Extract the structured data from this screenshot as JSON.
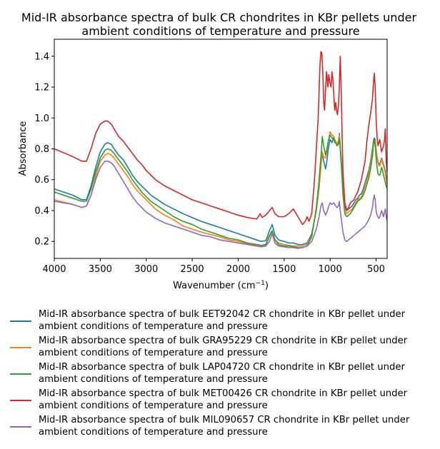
{
  "chart_data": {
    "type": "line",
    "title": "Mid-IR absorbance spectra of bulk CR chondrites in KBr pellets under\nambient conditions of temperature and pressure",
    "xlabel": "Wavenumber (cm",
    "xlabel_sup": "−1",
    "xlabel_close": ")",
    "ylabel": "Absorbance",
    "xlim": [
      4000,
      380
    ],
    "ylim": [
      0.09,
      1.51
    ],
    "xticks": [
      4000,
      3500,
      3000,
      2500,
      2000,
      1500,
      1000,
      500
    ],
    "xtick_labels": [
      "4000",
      "3500",
      "3000",
      "2500",
      "2000",
      "1500",
      "1000",
      "500"
    ],
    "yticks": [
      0.2,
      0.4,
      0.6,
      0.8,
      1.0,
      1.2,
      1.4
    ],
    "ytick_labels": [
      "0.2",
      "0.4",
      "0.6",
      "0.8",
      "1.0",
      "1.2",
      "1.4"
    ],
    "grid": false,
    "legend_position": "below",
    "series": [
      {
        "name": "Mid-IR absorbance spectra of bulk EET92042 CR chondrite in KBr pellet under\nambient conditions of temperature and pressure",
        "color": "#1f77b4",
        "x": [
          4000,
          3800,
          3700,
          3650,
          3600,
          3550,
          3500,
          3450,
          3420,
          3380,
          3350,
          3300,
          3250,
          3200,
          3150,
          3100,
          3050,
          3000,
          2950,
          2900,
          2800,
          2700,
          2600,
          2500,
          2400,
          2300,
          2200,
          2100,
          2000,
          1900,
          1800,
          1750,
          1700,
          1660,
          1630,
          1600,
          1560,
          1500,
          1450,
          1400,
          1350,
          1300,
          1250,
          1200,
          1150,
          1120,
          1100,
          1085,
          1070,
          1050,
          1035,
          1020,
          1000,
          980,
          960,
          950,
          940,
          925,
          910,
          900,
          890,
          875,
          860,
          840,
          820,
          800,
          780,
          760,
          740,
          720,
          700,
          680,
          660,
          640,
          620,
          600,
          580,
          560,
          540,
          530,
          520,
          510,
          500,
          490,
          480,
          470,
          460,
          450,
          440,
          430,
          420,
          410,
          400,
          390,
          380
        ],
        "y": [
          0.54,
          0.5,
          0.47,
          0.47,
          0.56,
          0.68,
          0.78,
          0.83,
          0.84,
          0.83,
          0.8,
          0.76,
          0.73,
          0.68,
          0.63,
          0.59,
          0.56,
          0.53,
          0.5,
          0.48,
          0.44,
          0.41,
          0.38,
          0.355,
          0.33,
          0.31,
          0.29,
          0.27,
          0.25,
          0.23,
          0.21,
          0.2,
          0.205,
          0.27,
          0.31,
          0.24,
          0.21,
          0.2,
          0.19,
          0.19,
          0.18,
          0.18,
          0.19,
          0.25,
          0.4,
          0.55,
          0.7,
          0.77,
          0.72,
          0.67,
          0.72,
          0.8,
          0.86,
          0.84,
          0.88,
          0.86,
          0.84,
          0.82,
          0.84,
          0.9,
          0.82,
          0.7,
          0.55,
          0.42,
          0.4,
          0.41,
          0.42,
          0.43,
          0.45,
          0.47,
          0.48,
          0.5,
          0.51,
          0.54,
          0.58,
          0.62,
          0.66,
          0.72,
          0.8,
          0.85,
          0.87,
          0.86,
          0.8,
          0.75,
          0.72,
          0.7,
          0.7,
          0.72,
          0.74,
          0.72,
          0.7,
          0.68,
          0.66,
          0.62,
          0.6
        ]
      },
      {
        "name": "Mid-IR absorbance spectra of bulk GRA95229 CR chondrite in KBr pellet under\nambient conditions of temperature and pressure",
        "color": "#ff7f0e",
        "x": [
          4000,
          3800,
          3700,
          3650,
          3600,
          3550,
          3500,
          3450,
          3420,
          3380,
          3350,
          3300,
          3250,
          3200,
          3150,
          3100,
          3050,
          3000,
          2950,
          2900,
          2800,
          2700,
          2600,
          2500,
          2400,
          2300,
          2200,
          2100,
          2000,
          1900,
          1800,
          1750,
          1700,
          1660,
          1630,
          1600,
          1560,
          1500,
          1450,
          1400,
          1350,
          1300,
          1250,
          1200,
          1150,
          1120,
          1100,
          1085,
          1070,
          1050,
          1035,
          1020,
          1000,
          980,
          960,
          950,
          940,
          925,
          910,
          900,
          890,
          875,
          860,
          840,
          820,
          800,
          780,
          760,
          740,
          720,
          700,
          680,
          660,
          640,
          620,
          600,
          580,
          560,
          540,
          530,
          520,
          510,
          500,
          490,
          480,
          470,
          460,
          450,
          440,
          430,
          420,
          410,
          400,
          390,
          380
        ],
        "y": [
          0.47,
          0.44,
          0.42,
          0.43,
          0.5,
          0.62,
          0.72,
          0.76,
          0.77,
          0.76,
          0.74,
          0.7,
          0.66,
          0.62,
          0.57,
          0.53,
          0.5,
          0.47,
          0.44,
          0.41,
          0.37,
          0.34,
          0.3,
          0.28,
          0.26,
          0.245,
          0.23,
          0.21,
          0.2,
          0.185,
          0.175,
          0.17,
          0.175,
          0.23,
          0.26,
          0.21,
          0.19,
          0.18,
          0.175,
          0.17,
          0.17,
          0.17,
          0.18,
          0.24,
          0.4,
          0.55,
          0.68,
          0.78,
          0.75,
          0.74,
          0.78,
          0.85,
          0.91,
          0.89,
          0.88,
          0.86,
          0.85,
          0.83,
          0.85,
          0.89,
          0.82,
          0.68,
          0.55,
          0.4,
          0.38,
          0.39,
          0.4,
          0.41,
          0.43,
          0.45,
          0.47,
          0.48,
          0.49,
          0.52,
          0.56,
          0.6,
          0.64,
          0.7,
          0.78,
          0.84,
          0.86,
          0.85,
          0.79,
          0.74,
          0.71,
          0.69,
          0.69,
          0.71,
          0.73,
          0.71,
          0.69,
          0.67,
          0.64,
          0.6,
          0.57
        ]
      },
      {
        "name": "Mid-IR absorbance spectra of bulk LAP04720 CR chondrite in KBr pellet under\nambient conditions of temperature and pressure",
        "color": "#2ca02c",
        "x": [
          4000,
          3800,
          3700,
          3650,
          3600,
          3550,
          3500,
          3450,
          3420,
          3380,
          3350,
          3300,
          3250,
          3200,
          3150,
          3100,
          3050,
          3000,
          2950,
          2900,
          2800,
          2700,
          2600,
          2500,
          2400,
          2300,
          2200,
          2100,
          2000,
          1900,
          1800,
          1750,
          1700,
          1660,
          1630,
          1600,
          1560,
          1500,
          1450,
          1400,
          1350,
          1300,
          1250,
          1200,
          1150,
          1120,
          1100,
          1085,
          1070,
          1050,
          1035,
          1020,
          1000,
          980,
          960,
          950,
          940,
          925,
          910,
          900,
          890,
          875,
          860,
          840,
          820,
          800,
          780,
          760,
          740,
          720,
          700,
          680,
          660,
          640,
          620,
          600,
          580,
          560,
          540,
          530,
          520,
          510,
          500,
          490,
          480,
          470,
          460,
          450,
          440,
          430,
          420,
          410,
          400,
          390,
          380
        ],
        "y": [
          0.52,
          0.48,
          0.46,
          0.46,
          0.54,
          0.65,
          0.74,
          0.79,
          0.8,
          0.79,
          0.77,
          0.73,
          0.69,
          0.65,
          0.6,
          0.56,
          0.52,
          0.49,
          0.46,
          0.44,
          0.4,
          0.36,
          0.33,
          0.31,
          0.28,
          0.26,
          0.24,
          0.22,
          0.21,
          0.19,
          0.18,
          0.175,
          0.18,
          0.24,
          0.27,
          0.21,
          0.18,
          0.17,
          0.17,
          0.165,
          0.16,
          0.16,
          0.17,
          0.23,
          0.42,
          0.6,
          0.75,
          0.88,
          0.82,
          0.76,
          0.8,
          0.85,
          0.89,
          0.87,
          0.86,
          0.84,
          0.84,
          0.82,
          0.83,
          0.87,
          0.8,
          0.66,
          0.5,
          0.38,
          0.36,
          0.37,
          0.38,
          0.4,
          0.42,
          0.44,
          0.46,
          0.47,
          0.48,
          0.5,
          0.53,
          0.57,
          0.61,
          0.67,
          0.75,
          0.82,
          0.86,
          0.82,
          0.74,
          0.68,
          0.64,
          0.63,
          0.63,
          0.65,
          0.68,
          0.66,
          0.63,
          0.61,
          0.58,
          0.56,
          0.54
        ]
      },
      {
        "name": "Mid-IR absorbance spectra of bulk MET00426 CR chondrite in KBr pellet under\nambient conditions of temperature and pressure",
        "color": "#d62728",
        "x": [
          4000,
          3800,
          3700,
          3650,
          3600,
          3550,
          3500,
          3450,
          3420,
          3380,
          3350,
          3300,
          3250,
          3200,
          3150,
          3100,
          3050,
          3000,
          2950,
          2900,
          2800,
          2700,
          2600,
          2500,
          2400,
          2300,
          2200,
          2100,
          2000,
          1900,
          1800,
          1780,
          1760,
          1740,
          1700,
          1660,
          1630,
          1600,
          1560,
          1500,
          1450,
          1400,
          1350,
          1300,
          1270,
          1250,
          1230,
          1200,
          1170,
          1150,
          1130,
          1110,
          1100,
          1090,
          1080,
          1070,
          1060,
          1050,
          1040,
          1035,
          1025,
          1015,
          1000,
          990,
          980,
          970,
          960,
          950,
          940,
          930,
          920,
          910,
          900,
          890,
          880,
          870,
          860,
          840,
          820,
          800,
          780,
          760,
          740,
          720,
          700,
          680,
          660,
          640,
          620,
          600,
          580,
          560,
          540,
          530,
          520,
          510,
          500,
          490,
          480,
          470,
          460,
          450,
          440,
          430,
          420,
          410,
          400,
          390,
          380
        ],
        "y": [
          0.8,
          0.75,
          0.72,
          0.72,
          0.8,
          0.9,
          0.96,
          0.98,
          0.98,
          0.96,
          0.93,
          0.88,
          0.85,
          0.81,
          0.77,
          0.73,
          0.7,
          0.66,
          0.63,
          0.6,
          0.56,
          0.53,
          0.5,
          0.47,
          0.45,
          0.43,
          0.41,
          0.39,
          0.37,
          0.355,
          0.345,
          0.36,
          0.38,
          0.355,
          0.37,
          0.4,
          0.42,
          0.38,
          0.36,
          0.36,
          0.38,
          0.41,
          0.36,
          0.31,
          0.33,
          0.36,
          0.33,
          0.38,
          0.6,
          0.8,
          1.0,
          1.35,
          1.43,
          1.42,
          1.3,
          1.1,
          1.05,
          1.18,
          1.3,
          1.28,
          1.2,
          1.28,
          1.22,
          1.2,
          1.3,
          1.25,
          1.15,
          1.05,
          1.1,
          1.05,
          1.02,
          1.08,
          1.2,
          1.4,
          1.2,
          0.9,
          0.65,
          0.45,
          0.4,
          0.42,
          0.45,
          0.46,
          0.47,
          0.5,
          0.52,
          0.56,
          0.6,
          0.66,
          0.72,
          0.85,
          0.95,
          1.03,
          1.12,
          1.22,
          1.29,
          1.2,
          1.0,
          0.88,
          0.82,
          0.84,
          0.86,
          0.82,
          0.78,
          0.8,
          0.82,
          0.85,
          0.93,
          0.72,
          0.65
        ]
      },
      {
        "name": "Mid-IR absorbance spectra of bulk MIL090657 CR chondrite in KBr pellet under\nambient conditions of temperature and pressure",
        "color": "#9467bd",
        "x": [
          4000,
          3800,
          3700,
          3650,
          3600,
          3550,
          3500,
          3450,
          3420,
          3380,
          3350,
          3300,
          3250,
          3200,
          3150,
          3100,
          3050,
          3000,
          2950,
          2900,
          2800,
          2700,
          2600,
          2500,
          2400,
          2300,
          2200,
          2100,
          2000,
          1900,
          1800,
          1750,
          1700,
          1660,
          1630,
          1600,
          1560,
          1500,
          1450,
          1400,
          1350,
          1300,
          1250,
          1200,
          1150,
          1120,
          1100,
          1085,
          1070,
          1050,
          1035,
          1020,
          1000,
          980,
          960,
          950,
          940,
          925,
          910,
          900,
          890,
          875,
          860,
          840,
          820,
          800,
          780,
          760,
          740,
          720,
          700,
          680,
          660,
          640,
          620,
          600,
          580,
          560,
          540,
          530,
          520,
          510,
          500,
          490,
          480,
          470,
          460,
          450,
          440,
          430,
          420,
          410,
          400,
          390,
          380
        ],
        "y": [
          0.46,
          0.44,
          0.42,
          0.43,
          0.5,
          0.6,
          0.68,
          0.72,
          0.72,
          0.71,
          0.69,
          0.64,
          0.59,
          0.54,
          0.49,
          0.45,
          0.42,
          0.39,
          0.37,
          0.35,
          0.32,
          0.3,
          0.28,
          0.26,
          0.24,
          0.23,
          0.21,
          0.2,
          0.19,
          0.18,
          0.17,
          0.165,
          0.17,
          0.2,
          0.25,
          0.19,
          0.17,
          0.165,
          0.16,
          0.16,
          0.155,
          0.16,
          0.17,
          0.2,
          0.28,
          0.36,
          0.43,
          0.45,
          0.4,
          0.37,
          0.39,
          0.42,
          0.45,
          0.44,
          0.45,
          0.44,
          0.43,
          0.42,
          0.43,
          0.46,
          0.4,
          0.33,
          0.26,
          0.21,
          0.2,
          0.21,
          0.22,
          0.23,
          0.24,
          0.25,
          0.26,
          0.27,
          0.28,
          0.29,
          0.3,
          0.32,
          0.34,
          0.37,
          0.42,
          0.47,
          0.5,
          0.47,
          0.4,
          0.37,
          0.36,
          0.35,
          0.36,
          0.38,
          0.4,
          0.38,
          0.36,
          0.39,
          0.41,
          0.36,
          0.33
        ]
      }
    ]
  }
}
